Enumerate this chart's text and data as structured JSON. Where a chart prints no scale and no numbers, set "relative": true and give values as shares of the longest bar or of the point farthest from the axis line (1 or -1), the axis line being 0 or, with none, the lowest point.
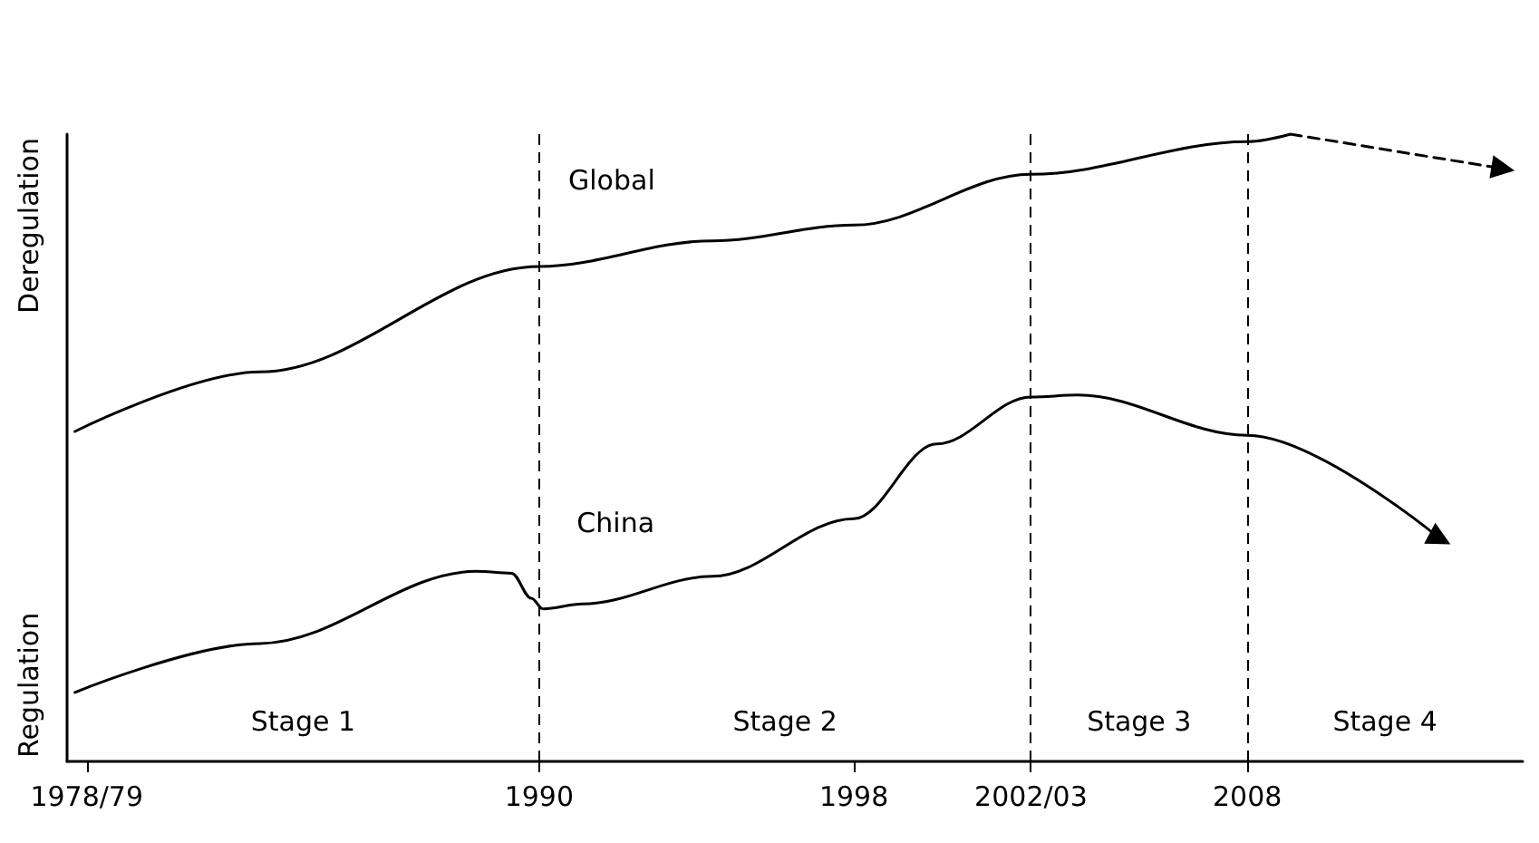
{
  "chart_data": {
    "type": "line",
    "relative": true,
    "xlim": [
      1978,
      2015
    ],
    "xticks": [
      {
        "value": 1978.5,
        "label": "1978/79"
      },
      1990,
      1998,
      {
        "value": 2002.5,
        "label": "2002/03"
      },
      2008
    ],
    "series": [
      {
        "name": "Global",
        "color": "#000000",
        "x": [
          1978.2,
          1982.9,
          1990,
          1994.4,
          1998,
          2002.5,
          2008,
          2009.1
        ],
        "values": [
          0.526,
          0.621,
          0.789,
          0.83,
          0.855,
          0.936,
          0.988,
          1.0
        ]
      },
      {
        "color": "#000000",
        "line_style": "dashed",
        "x": [
          2009.1,
          2014.5
        ],
        "values": [
          1.0,
          0.945
        ]
      },
      {
        "name": "China",
        "color": "#000000",
        "x": [
          1978.2,
          1982.9,
          1988.4,
          1989.3,
          1989.8,
          1990.1,
          1991.1,
          1994.4,
          1998,
          2000.1,
          2002.5,
          2003.7,
          2008,
          2012.9
        ],
        "values": [
          0.11,
          0.188,
          0.303,
          0.3,
          0.26,
          0.243,
          0.251,
          0.295,
          0.387,
          0.506,
          0.581,
          0.584,
          0.52,
          0.355
        ]
      }
    ],
    "line_style": "solid",
    "grid": false,
    "ref_lines": [
      {
        "axis": "x",
        "value": 1990,
        "line_style": "dashed"
      },
      {
        "axis": "x",
        "value": 2002.5,
        "line_style": "dashed"
      },
      {
        "axis": "x",
        "value": 2008,
        "line_style": "dashed"
      }
    ],
    "annotations": [
      "Regulation",
      "Deregulation",
      "Stage 1",
      "Stage 2",
      "Stage 3",
      "Stage 4"
    ]
  }
}
